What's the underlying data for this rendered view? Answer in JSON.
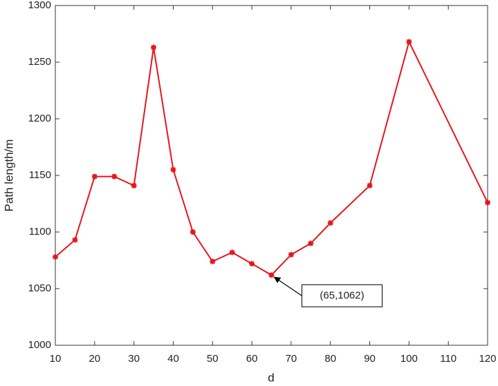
{
  "chart_data": {
    "type": "line",
    "x_label": "d",
    "y_label": "Path length/m",
    "x": [
      10,
      15,
      20,
      25,
      30,
      35,
      40,
      45,
      50,
      55,
      60,
      65,
      70,
      75,
      80,
      90,
      100,
      120
    ],
    "series": [
      {
        "color": "#e8141c",
        "values": [
          1078,
          1093,
          1149,
          1149,
          1141,
          1263,
          1155,
          1100,
          1074,
          1082,
          1072,
          1062,
          1080,
          1090,
          1108,
          1141,
          1268,
          1126
        ]
      }
    ],
    "xlim": [
      10,
      120
    ],
    "xticks": [
      10,
      20,
      30,
      40,
      50,
      60,
      70,
      80,
      90,
      100,
      110,
      120
    ],
    "ylim": [
      1000,
      1300
    ],
    "yticks": [
      1000,
      1050,
      1100,
      1150,
      1200,
      1250,
      1300
    ],
    "annotations": [
      {
        "text": "(65,1062)",
        "x": 65,
        "y": 1062
      }
    ]
  }
}
